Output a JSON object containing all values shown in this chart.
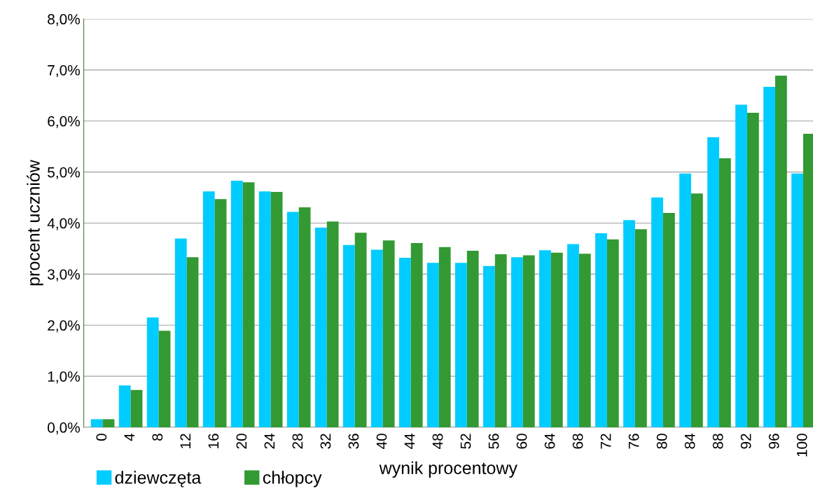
{
  "chart_data": {
    "type": "bar",
    "xlabel": "wynik procentowy",
    "ylabel": "procent uczniów",
    "categories": [
      "0",
      "4",
      "8",
      "12",
      "16",
      "20",
      "24",
      "28",
      "32",
      "36",
      "40",
      "44",
      "48",
      "52",
      "56",
      "60",
      "64",
      "68",
      "72",
      "76",
      "80",
      "84",
      "88",
      "92",
      "96",
      "100"
    ],
    "series": [
      {
        "name": "dziewczęta",
        "color": "#00ccff",
        "values": [
          0.16,
          0.82,
          2.15,
          3.7,
          4.62,
          4.83,
          4.62,
          4.22,
          3.91,
          3.57,
          3.48,
          3.32,
          3.22,
          3.22,
          3.16,
          3.33,
          3.47,
          3.59,
          3.8,
          4.06,
          4.5,
          4.97,
          5.68,
          6.32,
          6.67,
          4.97
        ]
      },
      {
        "name": "chłopcy",
        "color": "#339933",
        "values": [
          0.16,
          0.73,
          1.89,
          3.33,
          4.47,
          4.8,
          4.61,
          4.31,
          4.03,
          3.81,
          3.66,
          3.61,
          3.53,
          3.46,
          3.39,
          3.37,
          3.42,
          3.4,
          3.68,
          3.88,
          4.2,
          4.58,
          5.27,
          6.16,
          6.89,
          5.75
        ]
      }
    ],
    "ylim": [
      0,
      8
    ],
    "yticks": [
      {
        "value": 0,
        "label": "0,0%"
      },
      {
        "value": 1,
        "label": "1,0%"
      },
      {
        "value": 2,
        "label": "2,0%"
      },
      {
        "value": 3,
        "label": "3,0%"
      },
      {
        "value": 4,
        "label": "4,0%"
      },
      {
        "value": 5,
        "label": "5,0%"
      },
      {
        "value": 6,
        "label": "6,0%"
      },
      {
        "value": 7,
        "label": "7,0%"
      },
      {
        "value": 8,
        "label": "8,0%"
      }
    ],
    "grid": "y",
    "legend": "bottom left"
  }
}
